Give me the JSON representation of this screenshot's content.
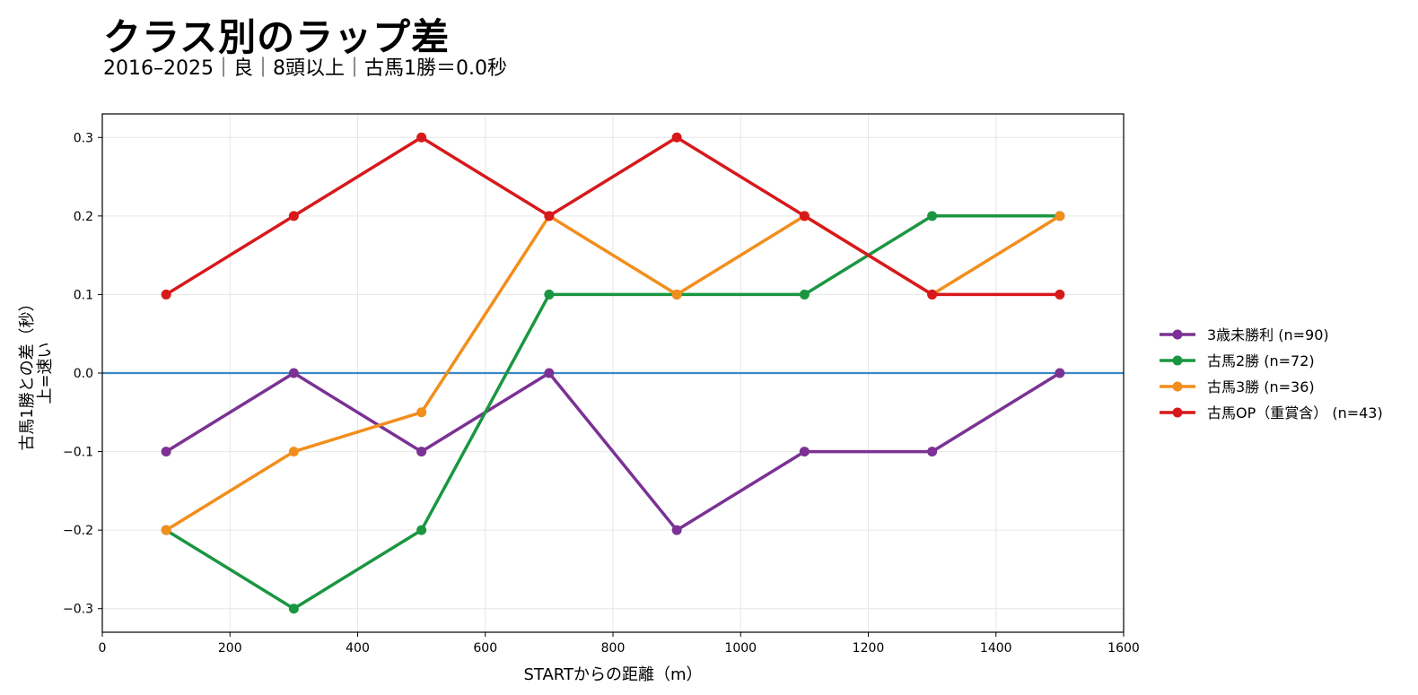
{
  "header": {
    "title": "クラス別のラップ差",
    "subtitle": "2016–2025｜良｜8頭以上｜古馬1勝＝0.0秒"
  },
  "chart_data": {
    "type": "line",
    "title": "クラス別のラップ差",
    "subtitle": "2016–2025｜良｜8頭以上｜古馬1勝＝0.0秒",
    "xlabel": "STARTからの距離（m）",
    "ylabel_lines": [
      "古馬1勝との差（秒）",
      "上=速い"
    ],
    "xlim": [
      0,
      1600
    ],
    "ylim": [
      -0.33,
      0.33
    ],
    "xticks": [
      0,
      200,
      400,
      600,
      800,
      1000,
      1200,
      1400,
      1600
    ],
    "yticks": [
      -0.3,
      -0.2,
      -0.1,
      0.0,
      0.1,
      0.2,
      0.3
    ],
    "grid": true,
    "legend_position": "right, outside plot",
    "baseline": {
      "y": 0.0,
      "color": "#3a87c8"
    },
    "x": [
      100,
      300,
      500,
      700,
      900,
      1100,
      1300,
      1500
    ],
    "series": [
      {
        "name": "3歳未勝利 (n=90)",
        "color": "#7b3294",
        "values": [
          -0.1,
          0.0,
          -0.1,
          0.0,
          -0.2,
          -0.1,
          -0.1,
          0.0
        ]
      },
      {
        "name": "古馬2勝 (n=72)",
        "color": "#1a9641",
        "values": [
          -0.2,
          -0.3,
          -0.2,
          0.1,
          0.1,
          0.1,
          0.2,
          0.2
        ]
      },
      {
        "name": "古馬3勝 (n=36)",
        "color": "#f28e1c",
        "values": [
          -0.2,
          -0.1,
          -0.05,
          0.2,
          0.1,
          0.2,
          0.1,
          0.2
        ]
      },
      {
        "name": "古馬OP（重賞含） (n=43)",
        "color": "#d7191c",
        "values": [
          0.1,
          0.2,
          0.3,
          0.2,
          0.3,
          0.2,
          0.1,
          0.1
        ]
      }
    ]
  }
}
